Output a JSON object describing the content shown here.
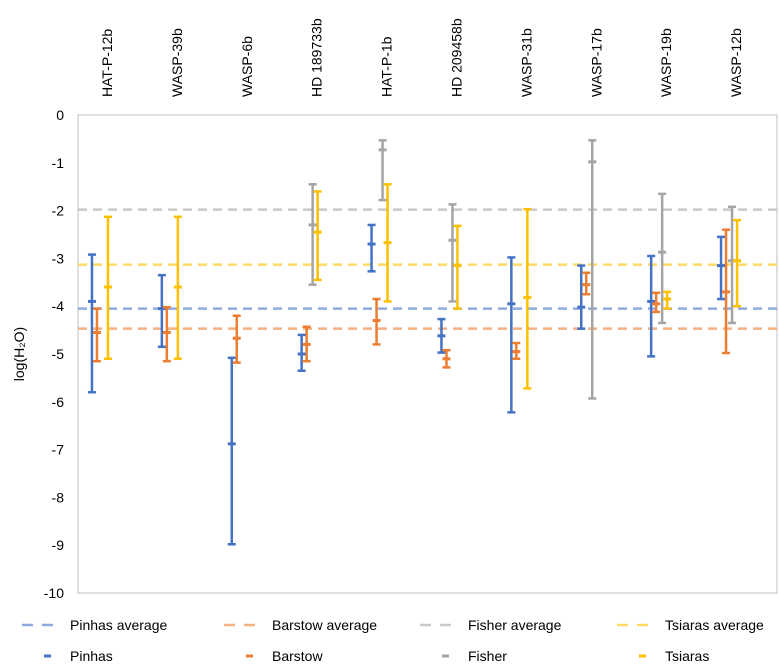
{
  "chart_data": {
    "type": "scatter",
    "title": "",
    "ylabel": "log(H₂O)",
    "ylim": [
      -10,
      0
    ],
    "yticks": [
      0,
      -1,
      -2,
      -3,
      -4,
      -5,
      -6,
      -7,
      -8,
      -9,
      -10
    ],
    "grid": false,
    "legend_position": "bottom",
    "categories": [
      "HAT-P-12b",
      "WASP-39b",
      "WASP-6b",
      "HD 189733b",
      "HAT-P-1b",
      "HD 209458b",
      "WASP-31b",
      "WASP-17b",
      "WASP-19b",
      "WASP-12b"
    ],
    "averages": [
      {
        "name": "Pinhas average",
        "value": -4.05,
        "color": "#8FAADC"
      },
      {
        "name": "Barstow average",
        "value": -4.47,
        "color": "#F4B183"
      },
      {
        "name": "Fisher average",
        "value": -1.98,
        "color": "#C9C9C9"
      },
      {
        "name": "Tsiaras average",
        "value": -3.13,
        "color": "#FFD966"
      }
    ],
    "series": [
      {
        "name": "Pinhas",
        "color": "#4472C4",
        "points": [
          {
            "category": "HAT-P-12b",
            "value": -3.9,
            "low": -5.8,
            "high": -2.92
          },
          {
            "category": "WASP-39b",
            "value": -4.05,
            "low": -4.85,
            "high": -3.35
          },
          {
            "category": "WASP-6b",
            "value": -6.88,
            "low": -8.98,
            "high": -5.08
          },
          {
            "category": "HD 189733b",
            "value": -5.0,
            "low": -5.35,
            "high": -4.6
          },
          {
            "category": "HAT-P-1b",
            "value": -2.7,
            "low": -3.27,
            "high": -2.3
          },
          {
            "category": "HD 209458b",
            "value": -4.62,
            "low": -4.97,
            "high": -4.27
          },
          {
            "category": "WASP-31b",
            "value": -3.95,
            "low": -6.22,
            "high": -2.98
          },
          {
            "category": "WASP-17b",
            "value": -4.02,
            "low": -4.47,
            "high": -3.15
          },
          {
            "category": "WASP-19b",
            "value": -3.9,
            "low": -5.05,
            "high": -2.95
          },
          {
            "category": "WASP-12b",
            "value": -3.15,
            "low": -3.85,
            "high": -2.55
          }
        ]
      },
      {
        "name": "Barstow",
        "color": "#ED7D31",
        "points": [
          {
            "category": "HAT-P-12b",
            "value": -4.55,
            "low": -5.15,
            "high": -4.05
          },
          {
            "category": "WASP-39b",
            "value": -4.55,
            "low": -5.15,
            "high": -4.02
          },
          {
            "category": "WASP-6b",
            "value": -4.67,
            "low": -5.18,
            "high": -4.2
          },
          {
            "category": "HD 189733b",
            "value": -4.8,
            "low": -5.15,
            "high": -4.43
          },
          {
            "category": "HAT-P-1b",
            "value": -4.3,
            "low": -4.8,
            "high": -3.85
          },
          {
            "category": "HD 209458b",
            "value": -5.1,
            "low": -5.28,
            "high": -4.92
          },
          {
            "category": "WASP-31b",
            "value": -4.95,
            "low": -5.1,
            "high": -4.77
          },
          {
            "category": "WASP-17b",
            "value": -3.55,
            "low": -3.75,
            "high": -3.3
          },
          {
            "category": "WASP-19b",
            "value": -3.95,
            "low": -4.12,
            "high": -3.72
          },
          {
            "category": "WASP-12b",
            "value": -3.7,
            "low": -4.98,
            "high": -2.4
          }
        ]
      },
      {
        "name": "Fisher",
        "color": "#A5A5A5",
        "points": [
          {
            "category": "HD 189733b",
            "value": -2.3,
            "low": -3.55,
            "high": -1.45
          },
          {
            "category": "HAT-P-1b",
            "value": -0.73,
            "low": -1.78,
            "high": -0.53
          },
          {
            "category": "HD 209458b",
            "value": -2.62,
            "low": -3.9,
            "high": -1.87
          },
          {
            "category": "WASP-17b",
            "value": -0.98,
            "low": -5.93,
            "high": -0.53
          },
          {
            "category": "WASP-19b",
            "value": -2.87,
            "low": -4.35,
            "high": -1.65
          },
          {
            "category": "WASP-12b",
            "value": -3.05,
            "low": -4.35,
            "high": -1.92
          }
        ]
      },
      {
        "name": "Tsiaras",
        "color": "#FFC000",
        "points": [
          {
            "category": "HAT-P-12b",
            "value": -3.6,
            "low": -5.1,
            "high": -2.13
          },
          {
            "category": "WASP-39b",
            "value": -3.6,
            "low": -5.1,
            "high": -2.13
          },
          {
            "category": "HD 189733b",
            "value": -2.45,
            "low": -3.45,
            "high": -1.6
          },
          {
            "category": "HAT-P-1b",
            "value": -2.67,
            "low": -3.9,
            "high": -1.45
          },
          {
            "category": "HD 209458b",
            "value": -3.15,
            "low": -4.05,
            "high": -2.32
          },
          {
            "category": "WASP-31b",
            "value": -3.82,
            "low": -5.72,
            "high": -1.97
          },
          {
            "category": "WASP-19b",
            "value": -3.85,
            "low": -4.05,
            "high": -3.7
          },
          {
            "category": "WASP-12b",
            "value": -3.05,
            "low": -4.0,
            "high": -2.2
          }
        ]
      }
    ]
  }
}
